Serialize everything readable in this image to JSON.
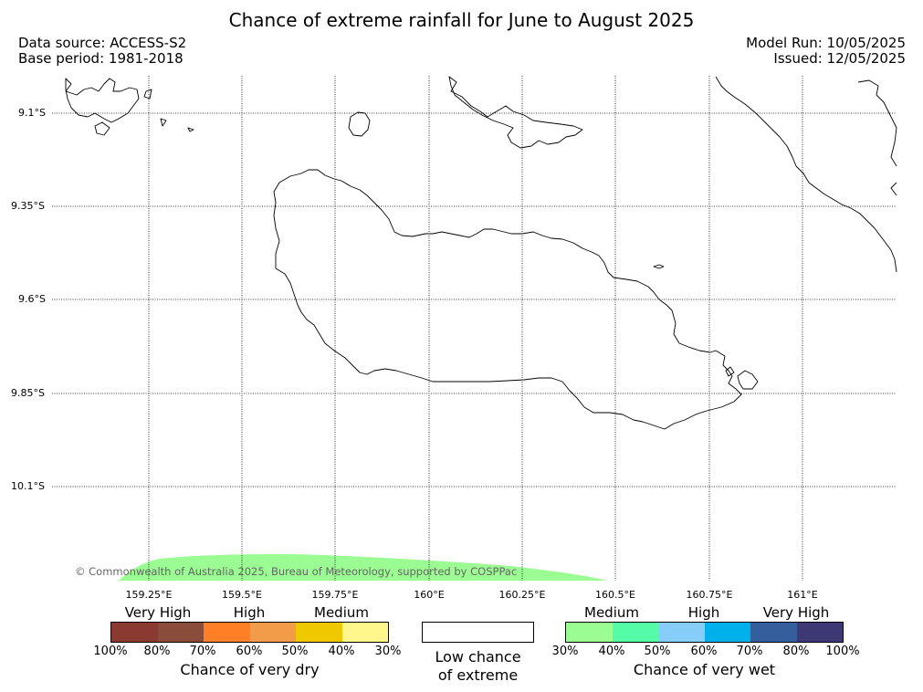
{
  "title": "Chance of extreme rainfall for June to August 2025",
  "meta": {
    "data_source": "Data source: ACCESS-S2",
    "base_period": "Base period: 1981-2018",
    "model_run": "Model Run: 10/05/2025",
    "issued": "Issued: 12/05/2025"
  },
  "map": {
    "latitudes": [
      "9.1°S",
      "9.35°S",
      "9.6°S",
      "9.85°S",
      "10.1°S"
    ],
    "longitudes": [
      "159.25°E",
      "159.5°E",
      "159.75°E",
      "160°E",
      "160.25°E",
      "160.5°E",
      "160.75°E",
      "161°E"
    ],
    "copyright": "© Commonwealth of Australia 2025, Bureau of Meteorology, supported by COSPPac",
    "colors": {
      "coast": "#000000",
      "grid": "#000000",
      "wet_30_40": "#9afc92"
    }
  },
  "legend": {
    "dry": {
      "categories": [
        "Very High",
        "High",
        "Medium"
      ],
      "colors": [
        "#8b3a32",
        "#8a4c3b",
        "#ff7f27",
        "#f29c4a",
        "#f0c800",
        "#fff68c"
      ],
      "ticks": [
        "100%",
        "80%",
        "70%",
        "60%",
        "50%",
        "40%",
        "30%"
      ],
      "title": "Chance of very dry"
    },
    "neutral": {
      "line1": "Low chance",
      "line2": "of extreme"
    },
    "wet": {
      "categories": [
        "Medium",
        "High",
        "Very High"
      ],
      "colors": [
        "#9afc92",
        "#55fca7",
        "#87cdfa",
        "#00b0eb",
        "#345e9c",
        "#3e3874"
      ],
      "ticks": [
        "30%",
        "40%",
        "50%",
        "60%",
        "70%",
        "80%",
        "100%"
      ],
      "title": "Chance of very wet"
    }
  }
}
